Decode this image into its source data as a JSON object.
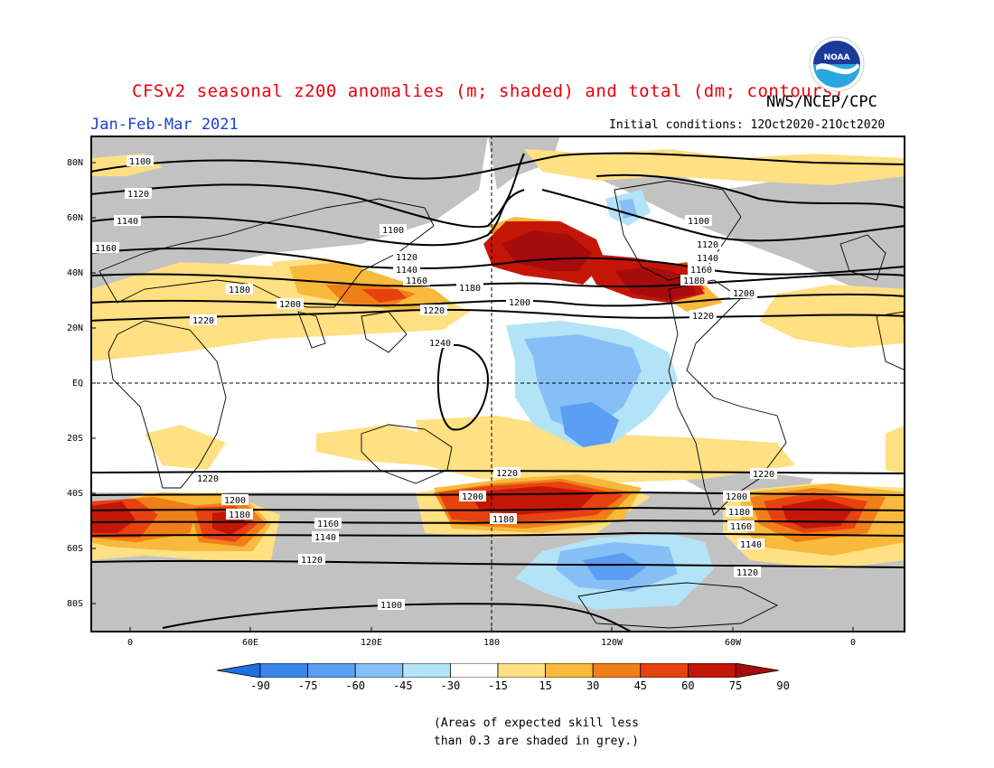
{
  "title": "CFSv2 seasonal z200 anomalies (m; shaded) and total (dm; contours)",
  "agency": "NWS/NCEP/CPC",
  "period": "Jan-Feb-Mar 2021",
  "initial_conditions": "Initial conditions: 12Oct2020-21Oct2020",
  "logo_text": "NOAA",
  "lat_labels": [
    "80N",
    "60N",
    "40N",
    "20N",
    "EQ",
    "20S",
    "40S",
    "60S",
    "80S"
  ],
  "lon_labels": [
    "0",
    "60E",
    "120E",
    "180",
    "120W",
    "60W",
    "0"
  ],
  "colorbar": {
    "labels": [
      "-90",
      "-75",
      "-60",
      "-45",
      "-30",
      "-15",
      "15",
      "30",
      "45",
      "60",
      "75",
      "90"
    ],
    "colors": [
      "#1e6fe0",
      "#3a86ea",
      "#5b9ef2",
      "#86bff6",
      "#b3e3f6",
      "#ffffff",
      "#ffe082",
      "#f8b93c",
      "#f07f1a",
      "#e64210",
      "#c41607",
      "#a60c0c"
    ]
  },
  "contour_labels": [
    "1100",
    "1120",
    "1140",
    "1160",
    "1180",
    "1200",
    "1220",
    "1240"
  ],
  "note_line1": "(Areas of expected skill less",
  "note_line2": "than 0.3 are shaded in grey.)",
  "colors": {
    "title": "#e8000b",
    "period": "#1a3fd1",
    "grey_mask": "#c2c2c2"
  }
}
